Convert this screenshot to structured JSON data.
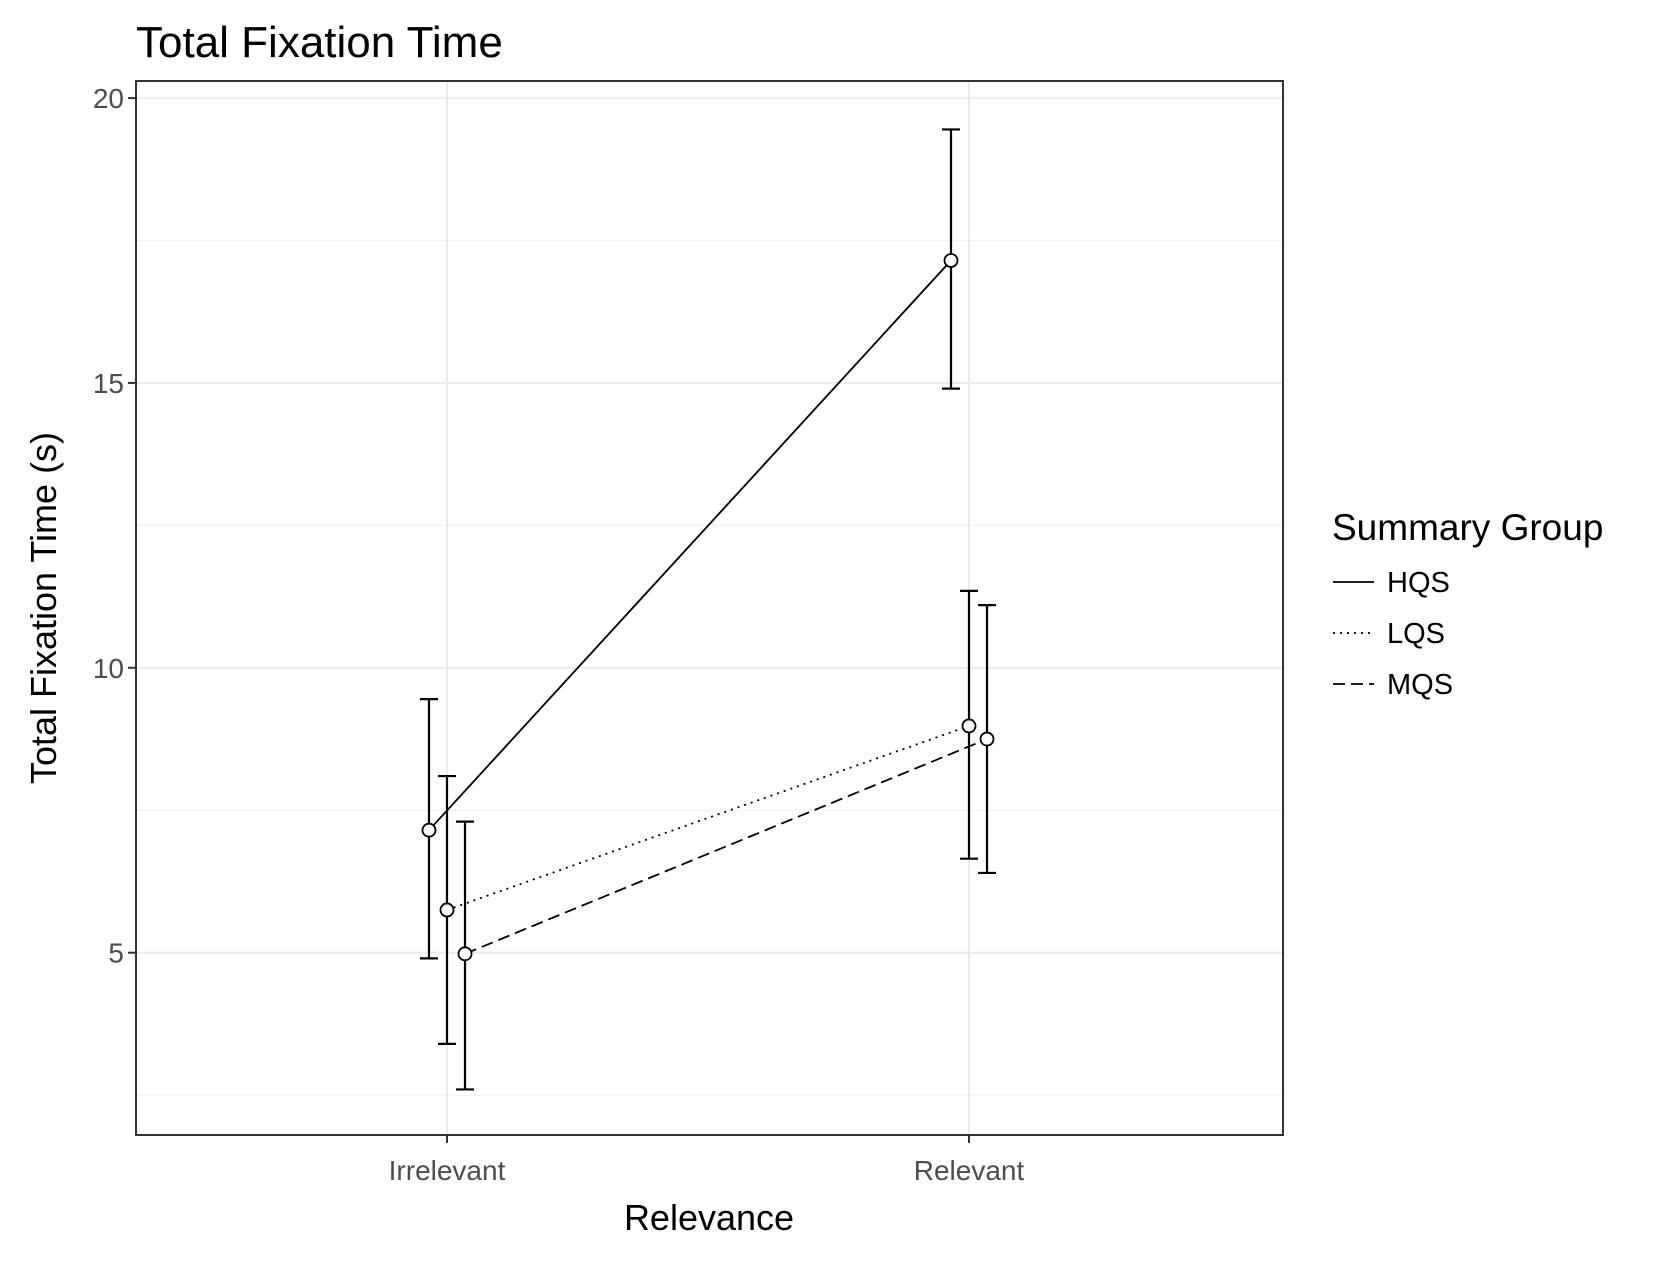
{
  "chart_data": {
    "type": "line",
    "title": "Total Fixation Time",
    "xlabel": "Relevance",
    "ylabel": "Total Fixation Time (s)",
    "categories": [
      "Irrelevant",
      "Relevant"
    ],
    "ylim": [
      1.8,
      20.3
    ],
    "yticks": [
      5,
      10,
      15,
      20
    ],
    "grid": true,
    "legend": {
      "title": "Summary Group",
      "placement": "right"
    },
    "series": [
      {
        "name": "HQS",
        "linetype": "solid",
        "values": [
          7.15,
          17.15
        ],
        "lower": [
          4.9,
          14.9
        ],
        "upper": [
          9.45,
          19.45
        ]
      },
      {
        "name": "LQS",
        "linetype": "dotted",
        "values": [
          5.75,
          8.98
        ],
        "lower": [
          3.4,
          6.65
        ],
        "upper": [
          8.1,
          11.35
        ]
      },
      {
        "name": "MQS",
        "linetype": "dashed",
        "values": [
          4.98,
          8.75
        ],
        "lower": [
          2.6,
          6.4
        ],
        "upper": [
          7.3,
          11.1
        ]
      }
    ]
  }
}
